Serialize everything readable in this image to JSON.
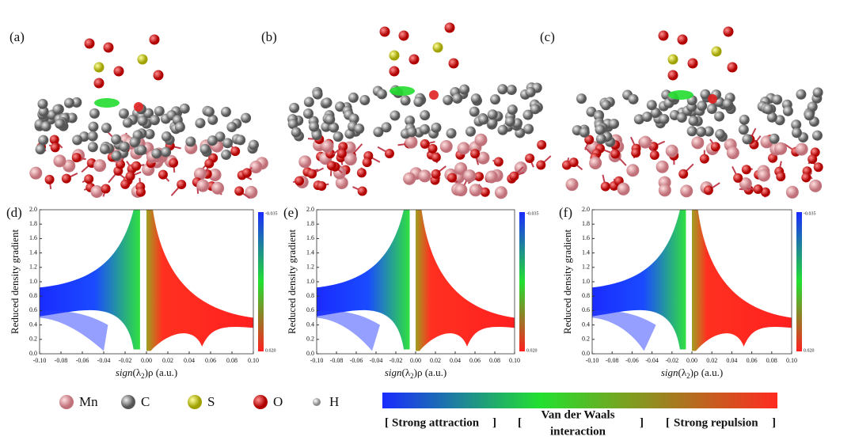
{
  "panels": {
    "top_labels": [
      "(a)",
      "(b)",
      "(c)"
    ],
    "plot_labels": [
      "(d)",
      "(e)",
      "(f)"
    ]
  },
  "plot": {
    "ylabel": "Reduced density gradient",
    "xlabel_italic": "sign",
    "xlabel_open": "(λ",
    "xlabel_sub": "2",
    "xlabel_close": ")ρ  (a.u.)",
    "xticks": [
      "-0.10",
      "-0.08",
      "-0.06",
      "-0.04",
      "-0.02",
      "0.00",
      "0.02",
      "0.04",
      "0.06",
      "0.08",
      "0.10"
    ],
    "yticks": [
      "0.0",
      "0.2",
      "0.4",
      "0.6",
      "0.8",
      "1.0",
      "1.2",
      "1.4",
      "1.6",
      "1.8",
      "2.0"
    ],
    "colorbar_top": "-0.035",
    "colorbar_bottom": "0.020"
  },
  "legend": {
    "atoms": [
      "Mn",
      "C",
      "S",
      "O",
      "H"
    ],
    "attraction": "Strong attraction",
    "vdw_line1": "Van der Waals",
    "vdw_line2": "interaction",
    "repulsion": "Strong repulsion"
  }
}
